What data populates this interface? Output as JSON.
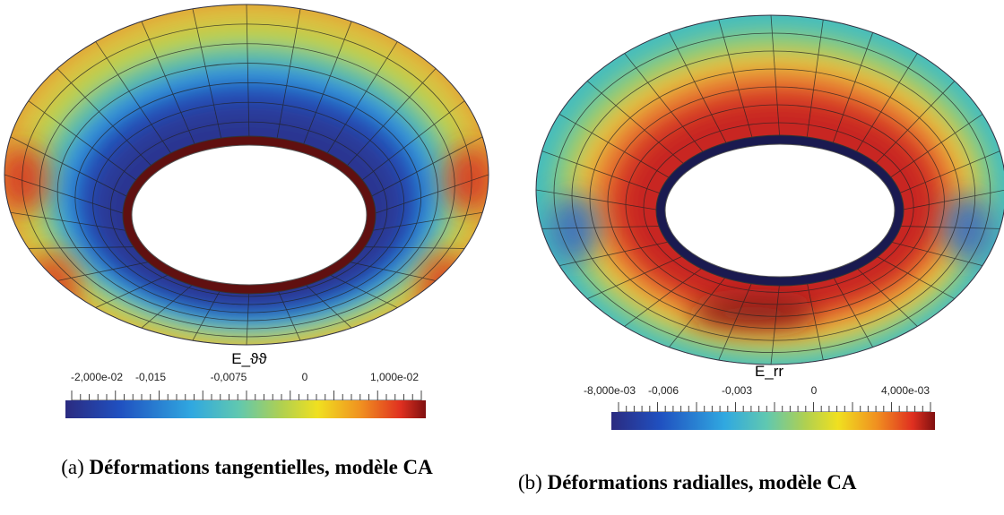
{
  "panels": [
    {
      "colorbar": {
        "title": "E_ϑϑ",
        "ticks": [
          "-2,000e-02",
          "-0,015",
          "-0,0075",
          "0",
          "1,000e-02"
        ]
      },
      "caption": {
        "label": "(a)",
        "text": "Déformations tangentielles, modèle CA"
      }
    },
    {
      "colorbar": {
        "title": "E_rr",
        "ticks": [
          "-8,000e-03",
          "-0,006",
          "-0,003",
          "0",
          "4,000e-03"
        ]
      },
      "caption": {
        "label": "(b)",
        "text": "Déformations radialles, modèle CA"
      }
    }
  ]
}
